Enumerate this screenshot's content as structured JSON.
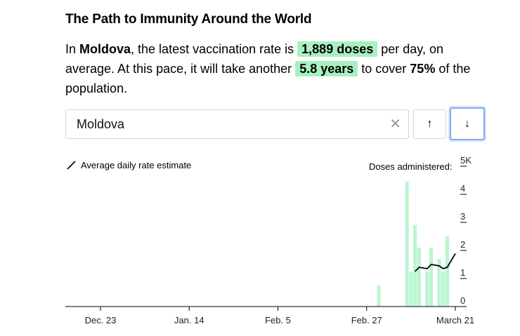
{
  "title": "The Path to Immunity Around the World",
  "summary": {
    "prefix": "In ",
    "country": "Moldova",
    "text1": ", the latest vaccination rate is ",
    "rate": "1,889 doses",
    "text2": " per day, on average. At this pace, it will take another ",
    "years": "5.8 years",
    "text3": " to cover ",
    "percent": "75%",
    "text4": " of the population."
  },
  "search": {
    "value": "Moldova",
    "clear_icon": "close-icon"
  },
  "nav": {
    "up_label": "↑",
    "down_label": "↓"
  },
  "legend": {
    "line_label": "Average daily rate estimate"
  },
  "doses_label": "Doses administered:",
  "colors": {
    "bar": "#b8f5cf",
    "line": "#000000",
    "highlight": "#a8f0c0",
    "focus": "#7fa8f5"
  },
  "chart_data": {
    "type": "bar",
    "x_axis": {
      "type": "date",
      "ticks": [
        "Dec. 23",
        "Jan. 14",
        "Feb. 5",
        "Feb. 27",
        "March 21"
      ]
    },
    "y_axis": {
      "ticks": [
        "0",
        "1",
        "2",
        "3",
        "4",
        "5K"
      ],
      "ylim": [
        0,
        5000
      ]
    },
    "bars": [
      {
        "date": "2021-03-02",
        "value": 750
      },
      {
        "date": "2021-03-09",
        "value": 4450
      },
      {
        "date": "2021-03-10",
        "value": 1250
      },
      {
        "date": "2021-03-11",
        "value": 2900
      },
      {
        "date": "2021-03-12",
        "value": 2100
      },
      {
        "date": "2021-03-14",
        "value": 1250
      },
      {
        "date": "2021-03-15",
        "value": 2100
      },
      {
        "date": "2021-03-17",
        "value": 1700
      },
      {
        "date": "2021-03-18",
        "value": 1250
      },
      {
        "date": "2021-03-19",
        "value": 2500
      }
    ],
    "series": [
      {
        "name": "Average daily rate estimate",
        "points": [
          {
            "date": "2021-03-11",
            "value": 1250
          },
          {
            "date": "2021-03-12",
            "value": 1400
          },
          {
            "date": "2021-03-14",
            "value": 1350
          },
          {
            "date": "2021-03-15",
            "value": 1500
          },
          {
            "date": "2021-03-17",
            "value": 1450
          },
          {
            "date": "2021-03-18",
            "value": 1350
          },
          {
            "date": "2021-03-19",
            "value": 1400
          },
          {
            "date": "2021-03-21",
            "value": 1889
          }
        ]
      }
    ]
  }
}
